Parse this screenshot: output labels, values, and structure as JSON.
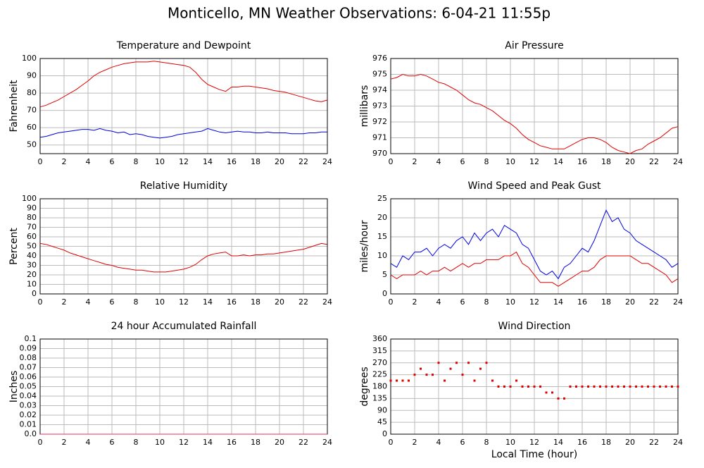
{
  "title": "Monticello, MN Weather Observations: 6-04-21 11:55p",
  "chart_data": [
    {
      "type": "line",
      "title": "Temperature and Dewpoint",
      "ylabel": "Fahrenheit",
      "grid": true,
      "x": [
        0,
        0.5,
        1,
        1.5,
        2,
        2.5,
        3,
        3.5,
        4,
        4.5,
        5,
        5.5,
        6,
        6.5,
        7,
        7.5,
        8,
        8.5,
        9,
        9.5,
        10,
        10.5,
        11,
        11.5,
        12,
        12.5,
        13,
        13.5,
        14,
        14.5,
        15,
        15.5,
        16,
        16.5,
        17,
        17.5,
        18,
        18.5,
        19,
        19.5,
        20,
        20.5,
        21,
        21.5,
        22,
        22.5,
        23,
        23.5,
        24
      ],
      "xlim": [
        0,
        24
      ],
      "xticks": [
        0,
        2,
        4,
        6,
        8,
        10,
        12,
        14,
        16,
        18,
        20,
        22,
        24
      ],
      "ylim": [
        45,
        100
      ],
      "yticks": [
        50,
        60,
        70,
        80,
        90,
        100
      ],
      "series": [
        {
          "name": "Temperature",
          "color": "#e00000",
          "values": [
            72,
            73,
            74.5,
            76,
            78,
            80,
            82,
            84.5,
            87,
            90,
            92,
            93.5,
            95,
            96,
            97,
            97.5,
            98,
            98,
            98,
            98.5,
            98,
            97.5,
            97,
            96.5,
            96,
            95,
            92,
            88,
            85,
            83.5,
            82,
            81,
            83.5,
            83.5,
            84,
            84,
            83.5,
            83,
            82.5,
            81.5,
            81,
            80.5,
            79.5,
            78.5,
            77.5,
            76.5,
            75.5,
            75,
            76
          ]
        },
        {
          "name": "Dewpoint",
          "color": "#0000e0",
          "values": [
            54.5,
            55,
            56,
            57,
            57.5,
            58,
            58.5,
            59,
            59,
            58.5,
            59.5,
            58.5,
            58,
            57,
            57.5,
            56,
            56.5,
            56,
            55,
            54.5,
            54,
            54.5,
            55,
            56,
            56.5,
            57,
            57.5,
            58,
            59.5,
            58.5,
            57.5,
            57,
            57.5,
            58,
            57.5,
            57.5,
            57,
            57,
            57.5,
            57,
            57,
            57,
            56.5,
            56.5,
            56.5,
            57,
            57,
            57.5,
            57.5
          ]
        }
      ]
    },
    {
      "type": "line",
      "title": "Air Pressure",
      "ylabel": "millibars",
      "grid": true,
      "x": [
        0,
        0.5,
        1,
        1.5,
        2,
        2.5,
        3,
        3.5,
        4,
        4.5,
        5,
        5.5,
        6,
        6.5,
        7,
        7.5,
        8,
        8.5,
        9,
        9.5,
        10,
        10.5,
        11,
        11.5,
        12,
        12.5,
        13,
        13.5,
        14,
        14.5,
        15,
        15.5,
        16,
        16.5,
        17,
        17.5,
        18,
        18.5,
        19,
        19.5,
        20,
        20.5,
        21,
        21.5,
        22,
        22.5,
        23,
        23.5,
        24
      ],
      "xlim": [
        0,
        24
      ],
      "xticks": [
        0,
        2,
        4,
        6,
        8,
        10,
        12,
        14,
        16,
        18,
        20,
        22,
        24
      ],
      "ylim": [
        970,
        976
      ],
      "yticks": [
        970,
        971,
        972,
        973,
        974,
        975,
        976
      ],
      "series": [
        {
          "name": "Pressure",
          "color": "#e00000",
          "values": [
            974.7,
            974.8,
            975,
            974.9,
            974.9,
            975,
            974.9,
            974.7,
            974.5,
            974.4,
            974.2,
            974,
            973.7,
            973.4,
            973.2,
            973.1,
            972.9,
            972.7,
            972.4,
            972.1,
            971.9,
            971.6,
            971.2,
            970.9,
            970.7,
            970.5,
            970.4,
            970.3,
            970.3,
            970.3,
            970.5,
            970.7,
            970.9,
            971,
            971,
            970.9,
            970.7,
            970.4,
            970.2,
            970.1,
            970,
            970.2,
            970.3,
            970.6,
            970.8,
            971,
            971.3,
            971.6,
            971.7
          ]
        }
      ]
    },
    {
      "type": "line",
      "title": "Relative Humidity",
      "ylabel": "Percent",
      "grid": true,
      "x": [
        0,
        0.5,
        1,
        1.5,
        2,
        2.5,
        3,
        3.5,
        4,
        4.5,
        5,
        5.5,
        6,
        6.5,
        7,
        7.5,
        8,
        8.5,
        9,
        9.5,
        10,
        10.5,
        11,
        11.5,
        12,
        12.5,
        13,
        13.5,
        14,
        14.5,
        15,
        15.5,
        16,
        16.5,
        17,
        17.5,
        18,
        18.5,
        19,
        19.5,
        20,
        20.5,
        21,
        21.5,
        22,
        22.5,
        23,
        23.5,
        24
      ],
      "xlim": [
        0,
        24
      ],
      "xticks": [
        0,
        2,
        4,
        6,
        8,
        10,
        12,
        14,
        16,
        18,
        20,
        22,
        24
      ],
      "ylim": [
        0,
        100
      ],
      "yticks": [
        0,
        10,
        20,
        30,
        40,
        50,
        60,
        70,
        80,
        90,
        100
      ],
      "series": [
        {
          "name": "Humidity",
          "color": "#e00000",
          "values": [
            53,
            52,
            50,
            48,
            46,
            43,
            41,
            39,
            37,
            35,
            33,
            31,
            30,
            28,
            27,
            26,
            25,
            25,
            24,
            23,
            23,
            23,
            24,
            25,
            26,
            28,
            31,
            36,
            40,
            42,
            43,
            44,
            40,
            40,
            41,
            40,
            41,
            41,
            42,
            42,
            43,
            44,
            45,
            46,
            47,
            49,
            51,
            53,
            52
          ]
        }
      ]
    },
    {
      "type": "line",
      "title": "Wind Speed and Peak Gust",
      "ylabel": "miles/hour",
      "grid": true,
      "x": [
        0,
        0.5,
        1,
        1.5,
        2,
        2.5,
        3,
        3.5,
        4,
        4.5,
        5,
        5.5,
        6,
        6.5,
        7,
        7.5,
        8,
        8.5,
        9,
        9.5,
        10,
        10.5,
        11,
        11.5,
        12,
        12.5,
        13,
        13.5,
        14,
        14.5,
        15,
        15.5,
        16,
        16.5,
        17,
        17.5,
        18,
        18.5,
        19,
        19.5,
        20,
        20.5,
        21,
        21.5,
        22,
        22.5,
        23,
        23.5,
        24
      ],
      "xlim": [
        0,
        24
      ],
      "xticks": [
        0,
        2,
        4,
        6,
        8,
        10,
        12,
        14,
        16,
        18,
        20,
        22,
        24
      ],
      "ylim": [
        0,
        25
      ],
      "yticks": [
        0,
        5,
        10,
        15,
        20,
        25
      ],
      "series": [
        {
          "name": "Peak Gust",
          "color": "#0000e0",
          "values": [
            8,
            7,
            10,
            9,
            11,
            11,
            12,
            10,
            12,
            13,
            12,
            14,
            15,
            13,
            16,
            14,
            16,
            17,
            15,
            18,
            17,
            16,
            13,
            12,
            9,
            6,
            5,
            6,
            4,
            7,
            8,
            10,
            12,
            11,
            14,
            18,
            22,
            19,
            20,
            17,
            16,
            14,
            13,
            12,
            11,
            10,
            9,
            7,
            8
          ]
        },
        {
          "name": "Wind Speed",
          "color": "#e00000",
          "values": [
            5,
            4,
            5,
            5,
            5,
            6,
            5,
            6,
            6,
            7,
            6,
            7,
            8,
            7,
            8,
            8,
            9,
            9,
            9,
            10,
            10,
            11,
            8,
            7,
            5,
            3,
            3,
            3,
            2,
            3,
            4,
            5,
            6,
            6,
            7,
            9,
            10,
            10,
            10,
            10,
            10,
            9,
            8,
            8,
            7,
            6,
            5,
            3,
            4
          ]
        }
      ]
    },
    {
      "type": "line",
      "title": "24 hour Accumulated Rainfall",
      "ylabel": "Inches",
      "grid": true,
      "x": [
        0,
        0.5,
        1,
        1.5,
        2,
        2.5,
        3,
        3.5,
        4,
        4.5,
        5,
        5.5,
        6,
        6.5,
        7,
        7.5,
        8,
        8.5,
        9,
        9.5,
        10,
        10.5,
        11,
        11.5,
        12,
        12.5,
        13,
        13.5,
        14,
        14.5,
        15,
        15.5,
        16,
        16.5,
        17,
        17.5,
        18,
        18.5,
        19,
        19.5,
        20,
        20.5,
        21,
        21.5,
        22,
        22.5,
        23,
        23.5,
        24
      ],
      "xlim": [
        0,
        24
      ],
      "xticks": [
        0,
        2,
        4,
        6,
        8,
        10,
        12,
        14,
        16,
        18,
        20,
        22,
        24
      ],
      "ylim": [
        0,
        0.1
      ],
      "yticks": [
        {
          "value": 0,
          "label": "0.0"
        },
        0.01,
        0.02,
        0.03,
        0.04,
        0.05,
        0.06,
        0.07,
        0.08,
        0.09,
        0.1
      ],
      "series": [
        {
          "name": "Rainfall",
          "color": "#e03060",
          "values": [
            0,
            0,
            0,
            0,
            0,
            0,
            0,
            0,
            0,
            0,
            0,
            0,
            0,
            0,
            0,
            0,
            0,
            0,
            0,
            0,
            0,
            0,
            0,
            0,
            0,
            0,
            0,
            0,
            0,
            0,
            0,
            0,
            0,
            0,
            0,
            0,
            0,
            0,
            0,
            0,
            0,
            0,
            0,
            0,
            0,
            0,
            0,
            0,
            0
          ]
        }
      ]
    },
    {
      "type": "scatter",
      "title": "Wind Direction",
      "ylabel": "degrees",
      "xlabel": "Local Time (hour)",
      "grid": true,
      "x": [
        0,
        0.5,
        1,
        1.5,
        2,
        2.5,
        3,
        3.5,
        4,
        4.5,
        5,
        5.5,
        6,
        6.5,
        7,
        7.5,
        8,
        8.5,
        9,
        9.5,
        10,
        10.5,
        11,
        11.5,
        12,
        12.5,
        13,
        13.5,
        14,
        14.5,
        15,
        15.5,
        16,
        16.5,
        17,
        17.5,
        18,
        18.5,
        19,
        19.5,
        20,
        20.5,
        21,
        21.5,
        22,
        22.5,
        23,
        23.5,
        24
      ],
      "xlim": [
        0,
        24
      ],
      "xticks": [
        0,
        2,
        4,
        6,
        8,
        10,
        12,
        14,
        16,
        18,
        20,
        22,
        24
      ],
      "ylim": [
        0,
        360
      ],
      "yticks": [
        0,
        45,
        90,
        135,
        180,
        225,
        270,
        315,
        360
      ],
      "series": [
        {
          "name": "Direction",
          "color": "#e00000",
          "values": [
            202.5,
            202.5,
            202.5,
            202.5,
            225,
            247.5,
            225,
            225,
            270,
            202.5,
            247.5,
            270,
            225,
            270,
            202.5,
            247.5,
            270,
            202.5,
            180,
            180,
            180,
            202.5,
            180,
            180,
            180,
            180,
            157.5,
            157.5,
            135,
            135,
            180,
            180,
            180,
            180,
            180,
            180,
            180,
            180,
            180,
            180,
            180,
            180,
            180,
            180,
            180,
            180,
            180,
            180,
            180
          ]
        }
      ]
    }
  ]
}
